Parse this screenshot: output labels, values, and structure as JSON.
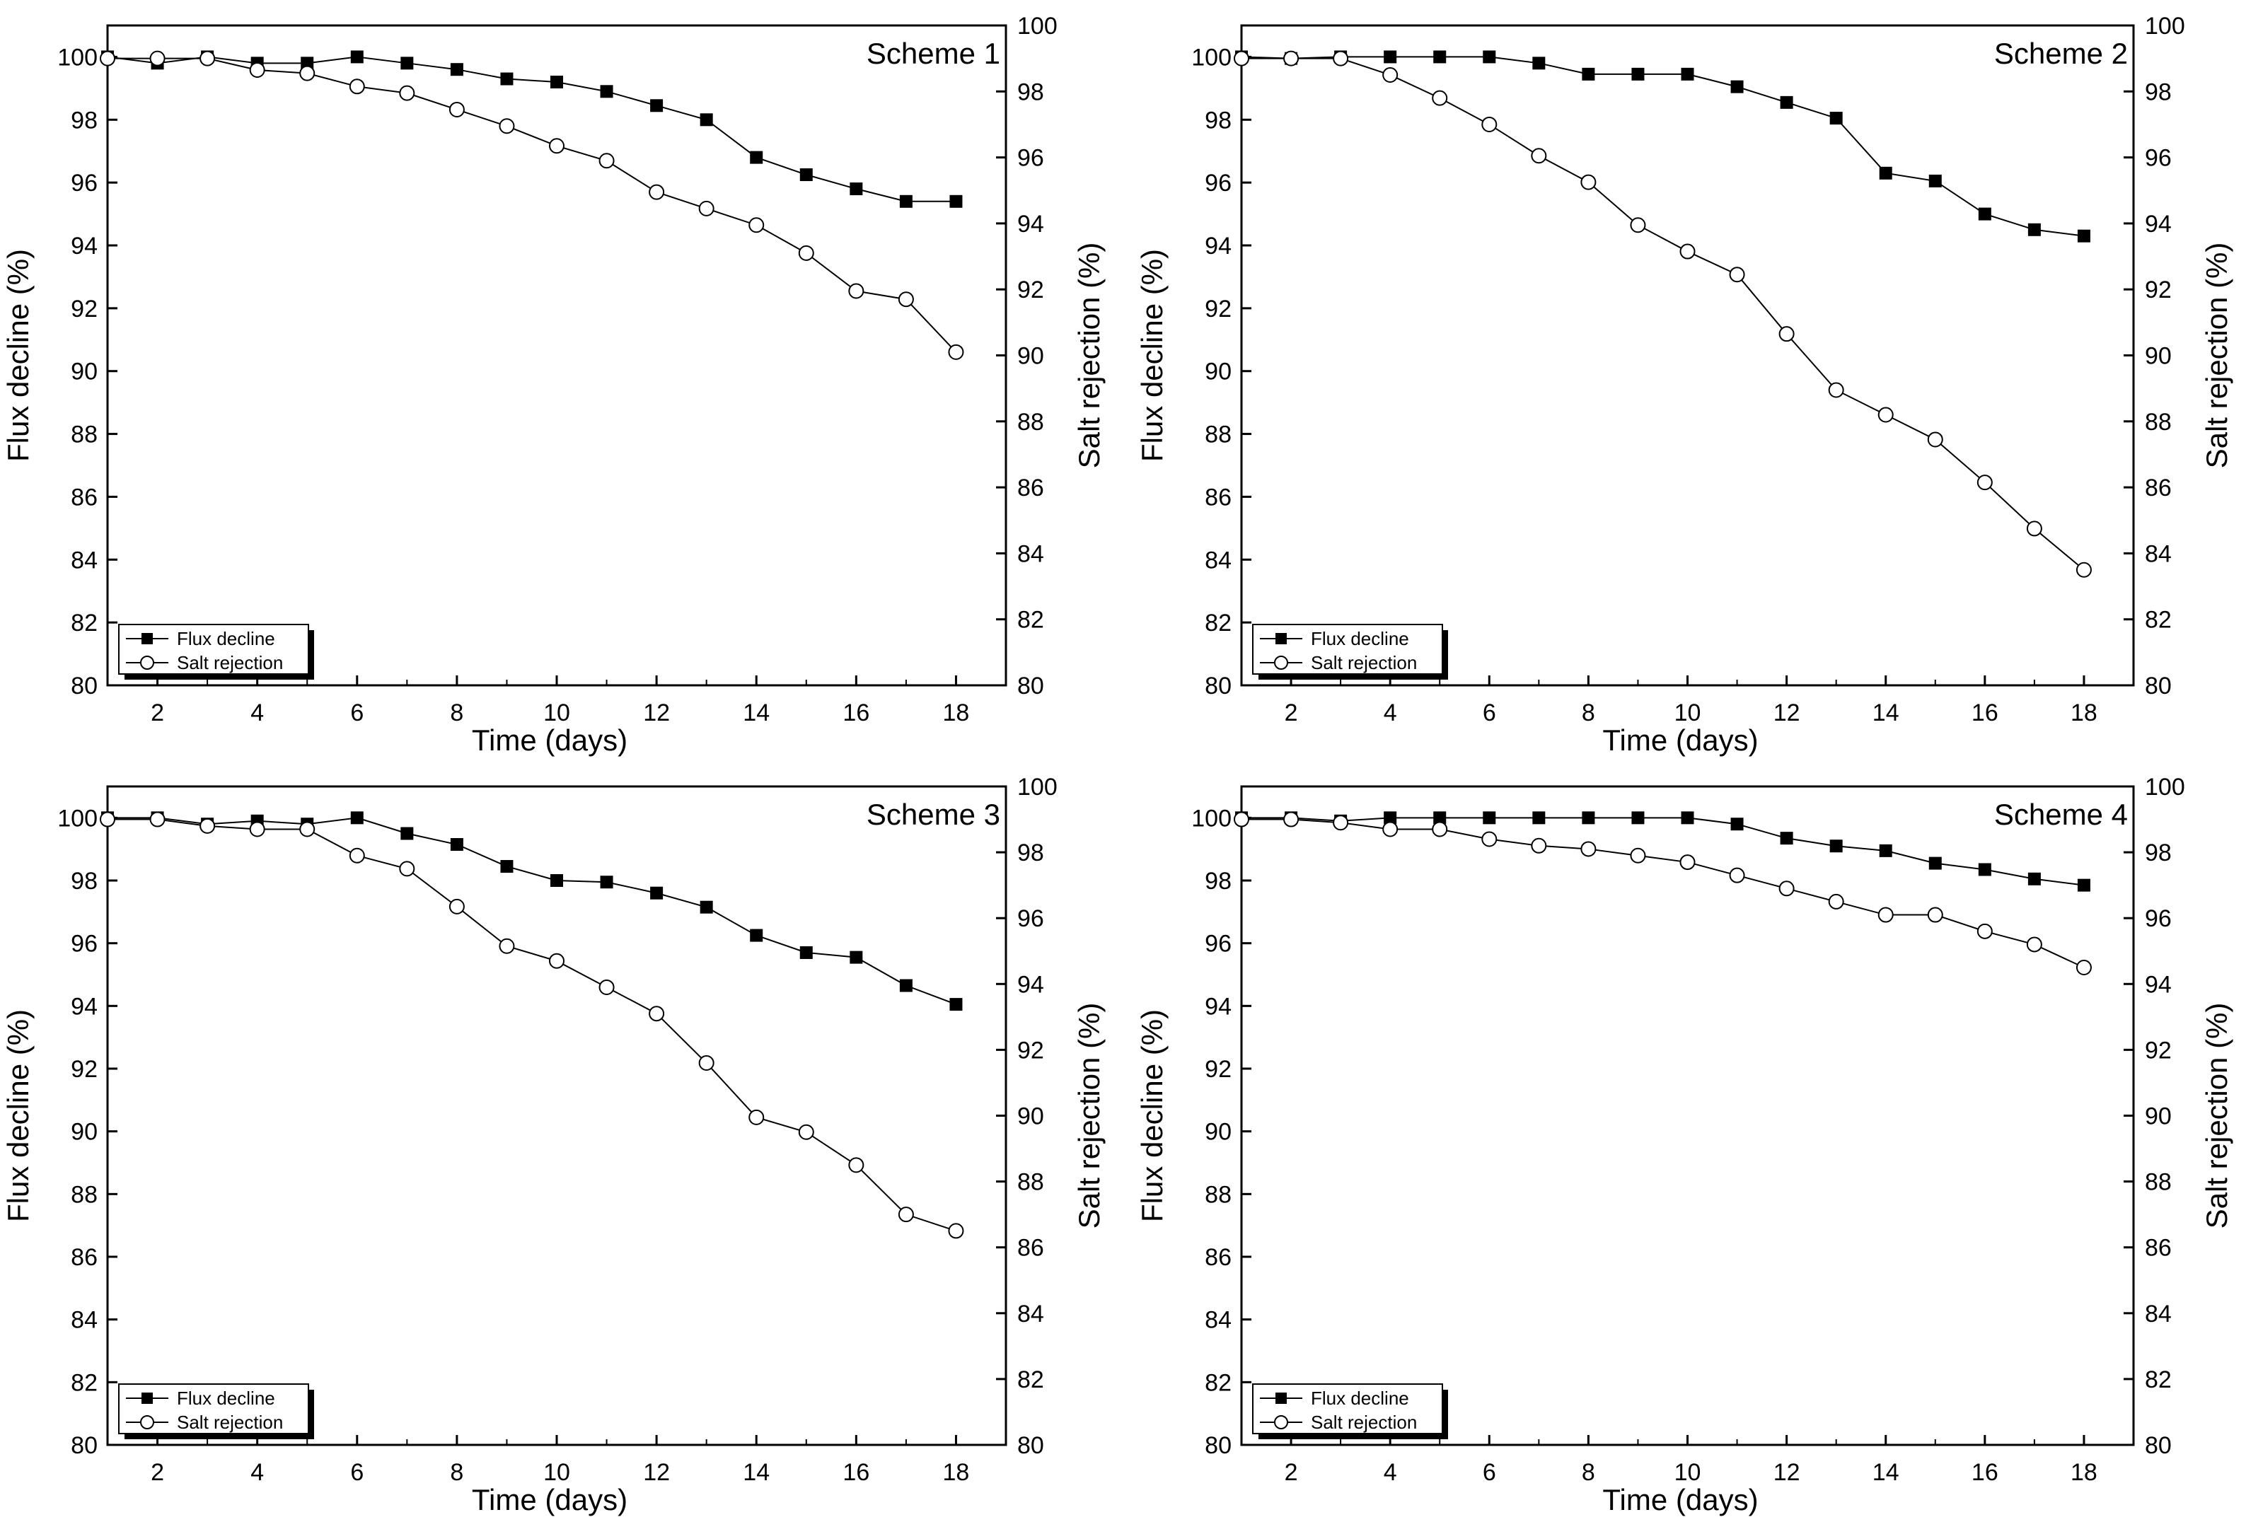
{
  "chart_data": [
    {
      "type": "line",
      "title": "Scheme 1",
      "xlabel": "Time (days)",
      "ylabel": "Flux decline (%)",
      "y2label": "Salt rejection (%)",
      "xlim": [
        1,
        19
      ],
      "ylim": [
        80,
        101
      ],
      "y2lim": [
        80,
        100
      ],
      "x_ticks": [
        2,
        4,
        6,
        8,
        10,
        12,
        14,
        16,
        18
      ],
      "y_ticks": [
        80,
        82,
        84,
        86,
        88,
        90,
        92,
        94,
        96,
        98,
        100
      ],
      "y2_ticks": [
        80,
        82,
        84,
        86,
        88,
        90,
        92,
        94,
        96,
        98,
        100
      ],
      "legend": "bottom-left",
      "x": [
        1,
        2,
        3,
        4,
        5,
        6,
        7,
        8,
        9,
        10,
        11,
        12,
        13,
        14,
        15,
        16,
        17,
        18
      ],
      "series": [
        {
          "name": "Flux decline",
          "axis": "left",
          "marker": "filled-square",
          "values": [
            100,
            99.8,
            100,
            99.8,
            99.8,
            100,
            99.8,
            99.6,
            99.3,
            99.2,
            98.9,
            98.45,
            98.0,
            96.8,
            96.25,
            95.8,
            95.4,
            95.4
          ]
        },
        {
          "name": "Salt rejection",
          "axis": "right",
          "marker": "open-circle",
          "values": [
            99.0,
            99.0,
            99.0,
            98.65,
            98.55,
            98.15,
            97.95,
            97.45,
            96.95,
            96.35,
            95.9,
            94.95,
            94.45,
            93.95,
            93.1,
            91.95,
            91.7,
            90.1
          ]
        }
      ]
    },
    {
      "type": "line",
      "title": "Scheme 2",
      "xlabel": "Time (days)",
      "ylabel": "Flux decline (%)",
      "y2label": "Salt rejection (%)",
      "xlim": [
        1,
        19
      ],
      "ylim": [
        80,
        101
      ],
      "y2lim": [
        80,
        100
      ],
      "x_ticks": [
        2,
        4,
        6,
        8,
        10,
        12,
        14,
        16,
        18
      ],
      "y_ticks": [
        80,
        82,
        84,
        86,
        88,
        90,
        92,
        94,
        96,
        98,
        100
      ],
      "y2_ticks": [
        80,
        82,
        84,
        86,
        88,
        90,
        92,
        94,
        96,
        98,
        100
      ],
      "legend": "bottom-left",
      "x": [
        1,
        2,
        3,
        4,
        5,
        6,
        7,
        8,
        9,
        10,
        11,
        12,
        13,
        14,
        15,
        16,
        17,
        18
      ],
      "series": [
        {
          "name": "Flux decline",
          "axis": "left",
          "marker": "filled-square",
          "values": [
            100,
            99.95,
            100,
            100,
            100,
            100,
            99.8,
            99.45,
            99.45,
            99.45,
            99.05,
            98.55,
            98.05,
            96.3,
            96.05,
            95.0,
            94.5,
            94.3
          ]
        },
        {
          "name": "Salt rejection",
          "axis": "right",
          "marker": "open-circle",
          "values": [
            99.0,
            99.0,
            99.0,
            98.5,
            97.8,
            97.0,
            96.05,
            95.25,
            93.95,
            93.15,
            92.45,
            90.65,
            88.95,
            88.2,
            87.45,
            86.15,
            84.75,
            83.5
          ]
        }
      ]
    },
    {
      "type": "line",
      "title": "Scheme 3",
      "xlabel": "Time (days)",
      "ylabel": "Flux decline (%)",
      "y2label": "Salt rejection (%)",
      "xlim": [
        1,
        19
      ],
      "ylim": [
        80,
        101
      ],
      "y2lim": [
        80,
        100
      ],
      "x_ticks": [
        2,
        4,
        6,
        8,
        10,
        12,
        14,
        16,
        18
      ],
      "y_ticks": [
        80,
        82,
        84,
        86,
        88,
        90,
        92,
        94,
        96,
        98,
        100
      ],
      "y2_ticks": [
        80,
        82,
        84,
        86,
        88,
        90,
        92,
        94,
        96,
        98,
        100
      ],
      "legend": "bottom-left",
      "x": [
        1,
        2,
        3,
        4,
        5,
        6,
        7,
        8,
        9,
        10,
        11,
        12,
        13,
        14,
        15,
        16,
        17,
        18
      ],
      "series": [
        {
          "name": "Flux decline",
          "axis": "left",
          "marker": "filled-square",
          "values": [
            100,
            100,
            99.8,
            99.9,
            99.8,
            100,
            99.5,
            99.15,
            98.45,
            98.0,
            97.95,
            97.6,
            97.15,
            96.25,
            95.7,
            95.55,
            94.65,
            94.05
          ]
        },
        {
          "name": "Salt rejection",
          "axis": "right",
          "marker": "open-circle",
          "values": [
            99.0,
            99.0,
            98.8,
            98.7,
            98.7,
            97.9,
            97.5,
            96.35,
            95.15,
            94.7,
            93.9,
            93.1,
            91.6,
            89.95,
            89.5,
            88.5,
            87.0,
            86.5
          ]
        }
      ]
    },
    {
      "type": "line",
      "title": "Scheme 4",
      "xlabel": "Time (days)",
      "ylabel": "Flux decline (%)",
      "y2label": "Salt rejection (%)",
      "xlim": [
        1,
        19
      ],
      "ylim": [
        80,
        101
      ],
      "y2lim": [
        80,
        100
      ],
      "x_ticks": [
        2,
        4,
        6,
        8,
        10,
        12,
        14,
        16,
        18
      ],
      "y_ticks": [
        80,
        82,
        84,
        86,
        88,
        90,
        92,
        94,
        96,
        98,
        100
      ],
      "y2_ticks": [
        80,
        82,
        84,
        86,
        88,
        90,
        92,
        94,
        96,
        98,
        100
      ],
      "legend": "bottom-left",
      "x": [
        1,
        2,
        3,
        4,
        5,
        6,
        7,
        8,
        9,
        10,
        11,
        12,
        13,
        14,
        15,
        16,
        17,
        18
      ],
      "series": [
        {
          "name": "Flux decline",
          "axis": "left",
          "marker": "filled-square",
          "values": [
            100,
            100,
            99.9,
            100,
            100,
            100,
            100,
            100,
            100,
            100,
            99.8,
            99.35,
            99.1,
            98.95,
            98.55,
            98.35,
            98.05,
            97.85
          ]
        },
        {
          "name": "Salt rejection",
          "axis": "right",
          "marker": "open-circle",
          "values": [
            99.0,
            99.0,
            98.9,
            98.7,
            98.7,
            98.4,
            98.2,
            98.1,
            97.9,
            97.7,
            97.3,
            96.9,
            96.5,
            96.1,
            96.1,
            95.6,
            95.2,
            94.5
          ]
        }
      ]
    }
  ]
}
